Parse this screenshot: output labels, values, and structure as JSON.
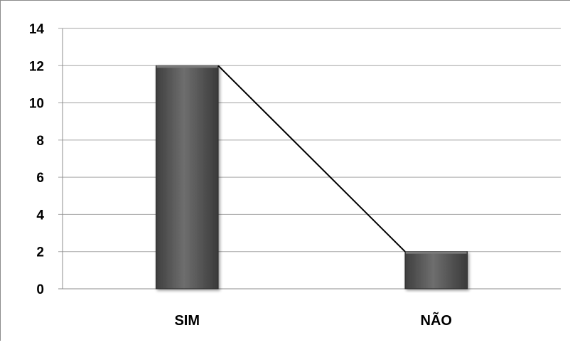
{
  "chart_data": {
    "type": "bar",
    "categories": [
      "SIM",
      "NÃO"
    ],
    "values": [
      12,
      2
    ],
    "line_overlay": true,
    "ylim": [
      0,
      14
    ],
    "yticks": [
      0,
      2,
      4,
      6,
      8,
      10,
      12,
      14
    ],
    "grid": true,
    "legend": "none",
    "colors": {
      "bar": "#595959",
      "bar_highlight": "#7a7a7a",
      "line": "#000000",
      "grid": "#a6a6a6",
      "axis": "#8c8c8c",
      "text": "#000000"
    }
  }
}
